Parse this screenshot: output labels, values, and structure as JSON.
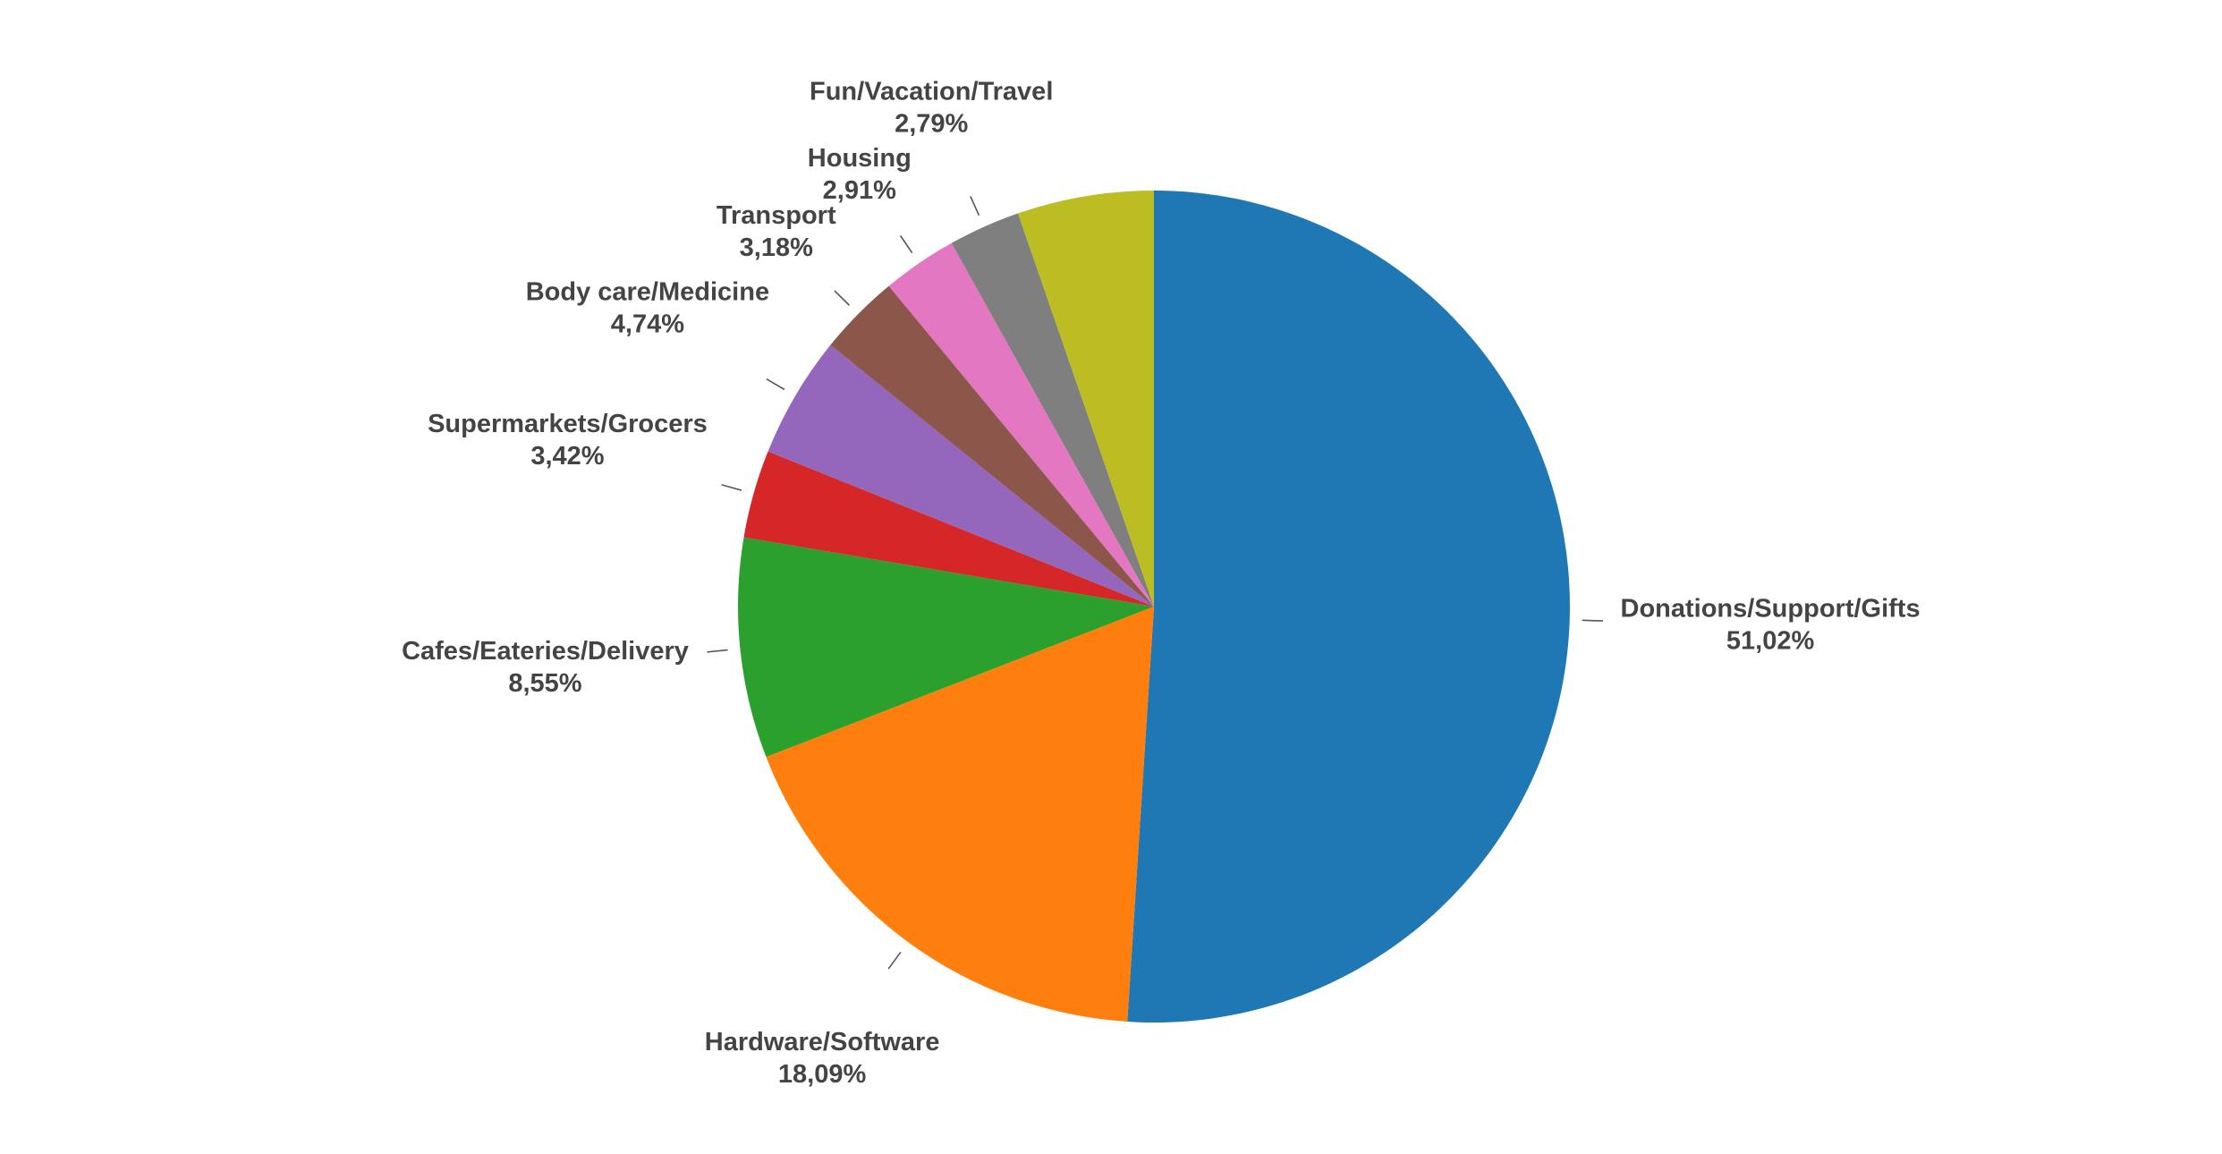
{
  "chart_data": {
    "type": "pie",
    "categories": [
      "Donations/Support/Gifts",
      "Hardware/Software",
      "Cafes/Eateries/Delivery",
      "Supermarkets/Grocers",
      "Body care/Medicine",
      "Transport",
      "Housing",
      "Fun/Vacation/Travel",
      null
    ],
    "values": [
      51.02,
      18.09,
      8.55,
      3.42,
      4.74,
      3.18,
      2.91,
      2.79,
      5.3
    ],
    "value_labels": [
      "51,02%",
      "18,09%",
      "8,55%",
      "3,42%",
      "4,74%",
      "3,18%",
      "2,91%",
      "2,79%",
      null
    ],
    "colors": [
      "#1f77b4",
      "#ff7f0e",
      "#2ca02c",
      "#d62728",
      "#9467bd",
      "#8c564b",
      "#e377c2",
      "#7f7f7f",
      "#bcbd22"
    ]
  }
}
